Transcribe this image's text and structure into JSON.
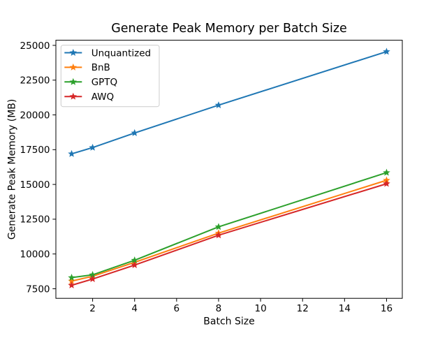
{
  "chart_data": {
    "type": "line",
    "title": "Generate Peak Memory per Batch Size",
    "xlabel": "Batch Size",
    "ylabel": "Generate Peak Memory (MB)",
    "x": [
      1,
      2,
      4,
      8,
      16
    ],
    "series": [
      {
        "name": "Unquantized",
        "color": "#1f77b4",
        "marker": "star",
        "values": [
          17200,
          17650,
          18700,
          20700,
          24550
        ]
      },
      {
        "name": "BnB",
        "color": "#ff7f0e",
        "marker": "star",
        "values": [
          8050,
          8400,
          9400,
          11500,
          15300
        ]
      },
      {
        "name": "GPTQ",
        "color": "#2ca02c",
        "marker": "star",
        "values": [
          8300,
          8500,
          9550,
          11950,
          15850
        ]
      },
      {
        "name": "AWQ",
        "color": "#d62728",
        "marker": "star",
        "values": [
          7750,
          8200,
          9200,
          11350,
          15050
        ]
      }
    ],
    "xlim": [
      0.25,
      16.75
    ],
    "ylim": [
      6810,
      25370
    ],
    "xticks": [
      2,
      4,
      6,
      8,
      10,
      12,
      14,
      16
    ],
    "yticks": [
      7500,
      10000,
      12500,
      15000,
      17500,
      20000,
      22500,
      25000
    ],
    "legend_position": "upper left",
    "grid": false,
    "background": "#ffffff",
    "axis_color": "#000000",
    "legend_border_color": "#cccccc"
  }
}
